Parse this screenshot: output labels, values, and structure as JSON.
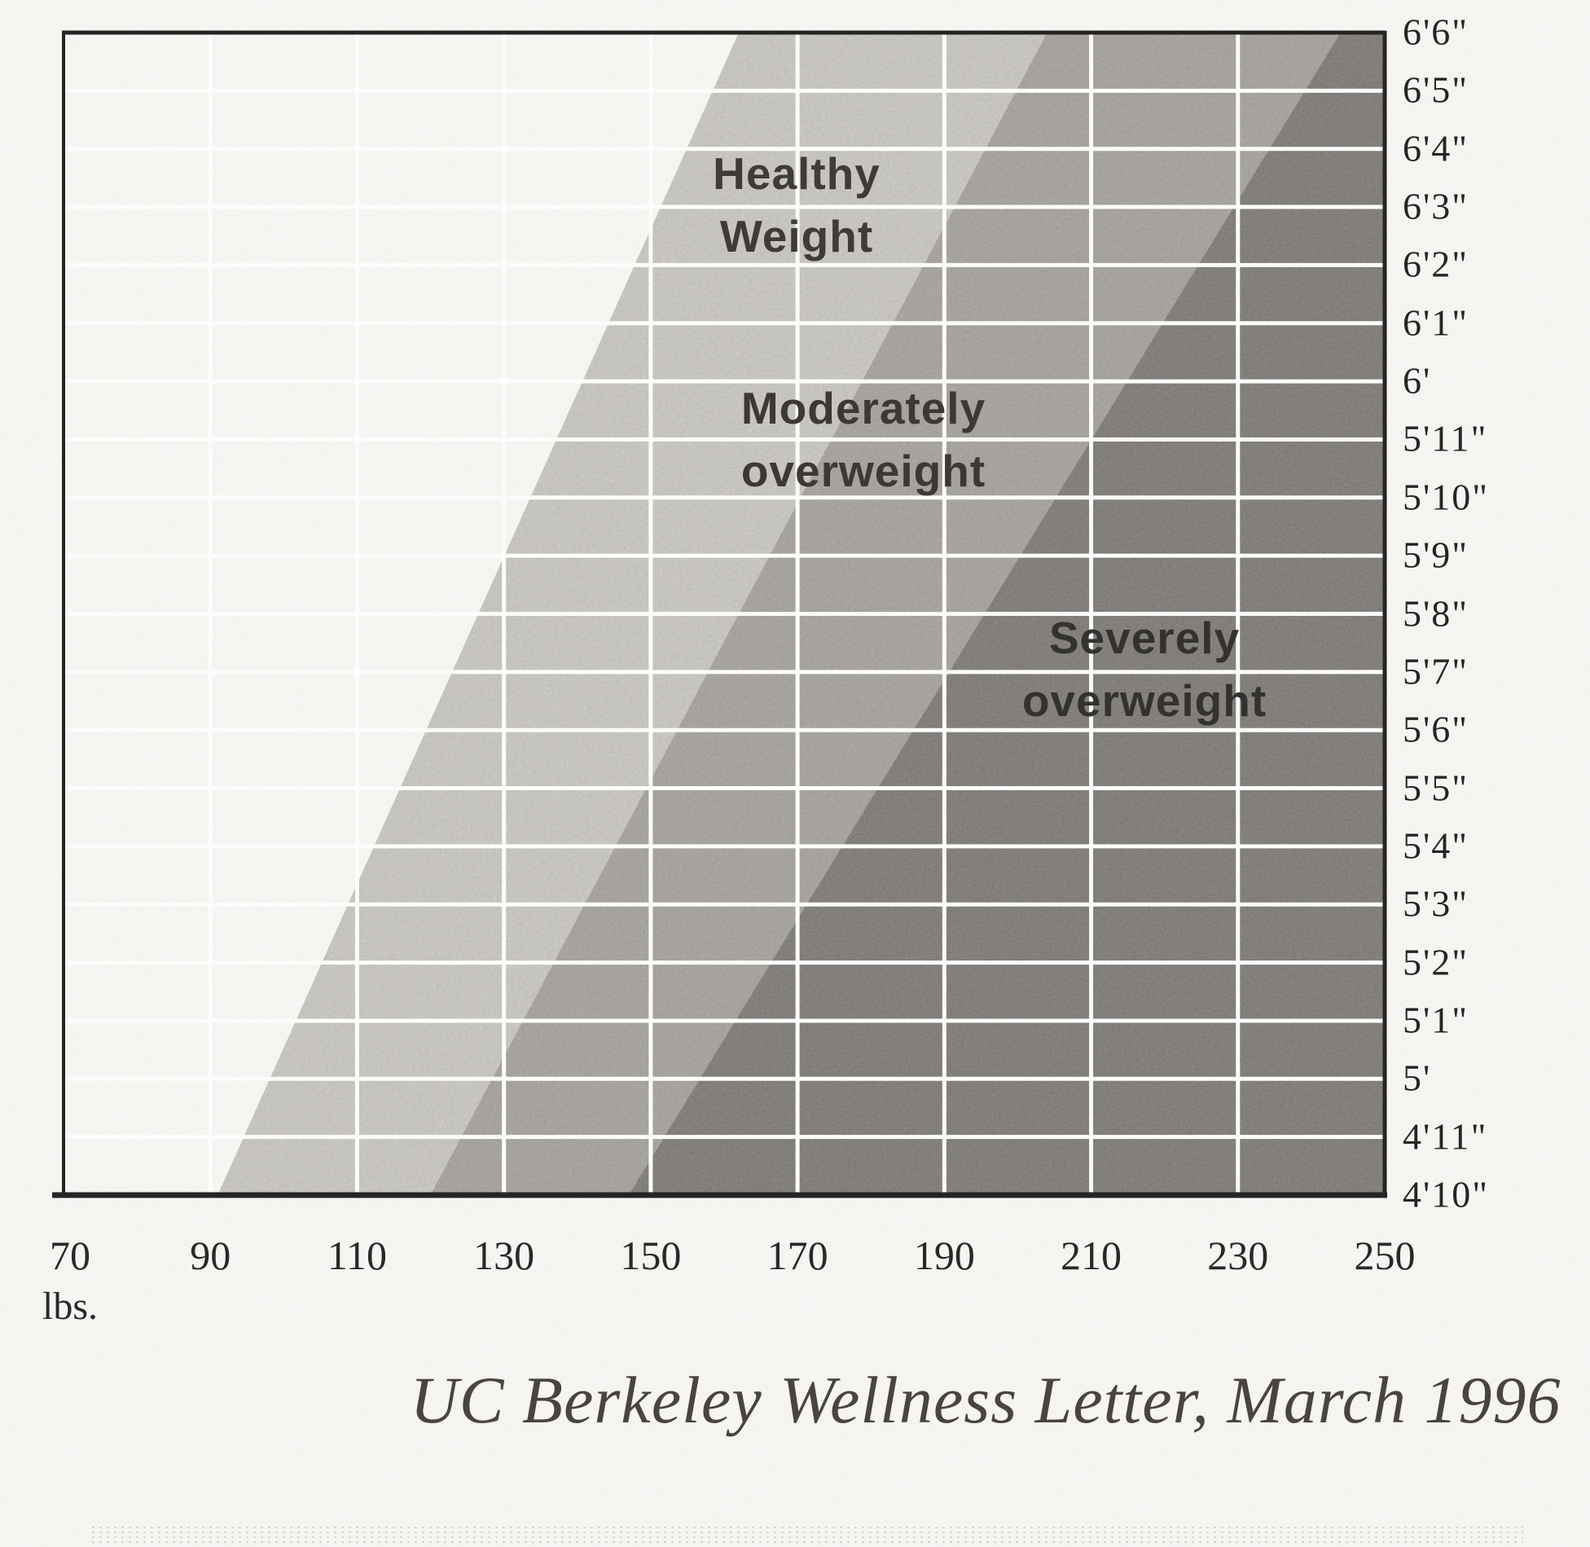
{
  "chart_data": {
    "type": "area",
    "title": "",
    "caption": "UC Berkeley Wellness Letter, March 1996",
    "grid": true,
    "x": {
      "unit_label": "lbs.",
      "min": 70,
      "max": 250,
      "ticks": [
        70,
        90,
        110,
        130,
        150,
        170,
        190,
        210,
        230,
        250
      ]
    },
    "y": {
      "min_inches": 58,
      "max_inches": 78,
      "tick_labels": [
        "6'6\"",
        "6'5\"",
        "6'4\"",
        "6'3\"",
        "6'2\"",
        "6'1\"",
        "6'",
        "5'11\"",
        "5'10\"",
        "5'9\"",
        "5'8\"",
        "5'7\"",
        "5'6\"",
        "5'5\"",
        "5'4\"",
        "5'3\"",
        "5'2\"",
        "5'1\"",
        "5'",
        "4'11\"",
        "4'10\""
      ]
    },
    "regions": [
      {
        "name": "Healthy Weight",
        "label_line1": "Healthy",
        "label_line2": "Weight",
        "fill": "#d6d4d0",
        "start_weight_lbs_at_4ft10": 91,
        "start_weight_lbs_at_6ft6": 162
      },
      {
        "name": "Moderately overweight",
        "label_line1": "Moderately",
        "label_line2": "overweight",
        "fill": "#a6a3a0",
        "start_weight_lbs_at_4ft10": 120,
        "start_weight_lbs_at_6ft6": 204
      },
      {
        "name": "Severely overweight",
        "label_line1": "Severely",
        "label_line2": "overweight",
        "fill": "#716e6c",
        "start_weight_lbs_at_4ft10": 147,
        "start_weight_lbs_at_6ft6": 244
      }
    ],
    "colors": {
      "paper": "#fcfbf9",
      "gridline": "#fcfcfa",
      "border": "#262422",
      "tick_text": "#2b2927",
      "region_label_text": "#3b3835"
    }
  }
}
